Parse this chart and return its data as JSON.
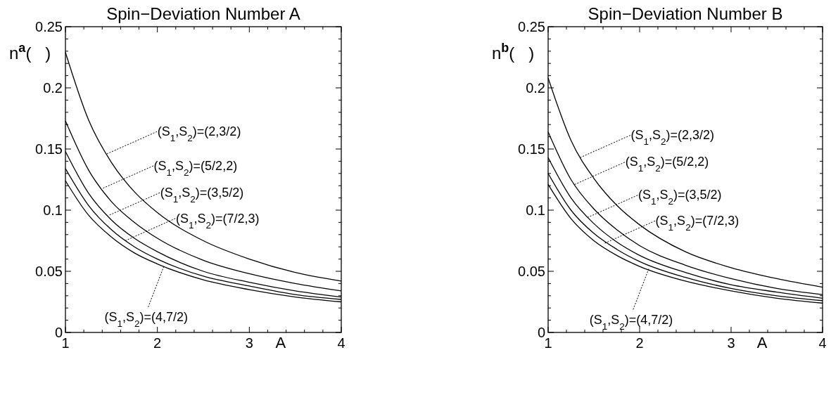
{
  "chart_data": [
    {
      "type": "line",
      "title": "Spin−Deviation Number A",
      "xlabel": "A",
      "ylabel": "n$^{a}$(   )",
      "x": [
        1,
        1.25,
        1.5,
        1.75,
        2,
        2.5,
        3,
        3.5,
        4
      ],
      "series": [
        {
          "color": "#000000",
          "values": [
            0.229,
            0.174,
            0.139,
            0.115,
            0.098,
            0.075,
            0.06,
            0.049,
            0.042
          ]
        },
        {
          "color": "#000000",
          "values": [
            0.173,
            0.133,
            0.107,
            0.09,
            0.077,
            0.059,
            0.048,
            0.04,
            0.034
          ]
        },
        {
          "color": "#000000",
          "values": [
            0.148,
            0.114,
            0.092,
            0.077,
            0.066,
            0.05,
            0.041,
            0.034,
            0.029
          ]
        },
        {
          "color": "#000000",
          "values": [
            0.134,
            0.104,
            0.084,
            0.07,
            0.06,
            0.046,
            0.038,
            0.031,
            0.027
          ]
        },
        {
          "color": "#000000",
          "values": [
            0.124,
            0.096,
            0.078,
            0.065,
            0.056,
            0.043,
            0.035,
            0.029,
            0.025
          ]
        }
      ],
      "annotations": [
        {
          "text": "(S$_{1}$,S$_{2}$)=(2,3/2)",
          "x": 1.45,
          "y": 0.146
        },
        {
          "text": "(S$_{1}$,S$_{2}$)=(5/2,2)",
          "x": 1.41,
          "y": 0.118
        },
        {
          "text": "(S$_{1}$,S$_{2}$)=(3,5/2)",
          "x": 1.48,
          "y": 0.096
        },
        {
          "text": "(S$_{1}$,S$_{2}$)=(7/2,3)",
          "x": 1.65,
          "y": 0.075
        },
        {
          "text": "(S$_{1}$,S$_{2}$)=(4,7/2)",
          "x": 2.07,
          "y": 0.054
        }
      ],
      "xlim": [
        1,
        4
      ],
      "ylim": [
        0,
        0.25
      ],
      "xticks": [
        1,
        {
          "value": 1.2,
          "label": null
        },
        {
          "value": 1.4,
          "label": null
        },
        {
          "value": 1.6,
          "label": null
        },
        {
          "value": 1.8,
          "label": null
        },
        2,
        {
          "value": 2.2,
          "label": null
        },
        {
          "value": 2.4,
          "label": null
        },
        {
          "value": 2.6,
          "label": null
        },
        {
          "value": 2.8,
          "label": null
        },
        3,
        {
          "value": 3.2,
          "label": null
        },
        {
          "value": 3.4,
          "label": null
        },
        {
          "value": 3.6,
          "label": null
        },
        {
          "value": 3.8,
          "label": null
        },
        4
      ],
      "yticks": [
        0,
        {
          "value": 0.01,
          "label": null
        },
        {
          "value": 0.02,
          "label": null
        },
        {
          "value": 0.03,
          "label": null
        },
        {
          "value": 0.04,
          "label": null
        },
        0.05,
        {
          "value": 0.06,
          "label": null
        },
        {
          "value": 0.07,
          "label": null
        },
        {
          "value": 0.08,
          "label": null
        },
        {
          "value": 0.09,
          "label": null
        },
        0.1,
        {
          "value": 0.11,
          "label": null
        },
        {
          "value": 0.12,
          "label": null
        },
        {
          "value": 0.13,
          "label": null
        },
        {
          "value": 0.14,
          "label": null
        },
        0.15,
        {
          "value": 0.16,
          "label": null
        },
        {
          "value": 0.17,
          "label": null
        },
        {
          "value": 0.18,
          "label": null
        },
        {
          "value": 0.19,
          "label": null
        },
        0.2,
        {
          "value": 0.21,
          "label": null
        },
        {
          "value": 0.22,
          "label": null
        },
        {
          "value": 0.23,
          "label": null
        },
        {
          "value": 0.24,
          "label": null
        },
        0.25
      ],
      "line_style": "solid",
      "marker": "none",
      "grid": false
    },
    {
      "type": "line",
      "title": "Spin−Deviation Number B",
      "xlabel": "A",
      "ylabel": "n$^{b}$(   )",
      "x": [
        1,
        1.25,
        1.5,
        1.75,
        2,
        2.5,
        3,
        3.5,
        4
      ],
      "series": [
        {
          "color": "#000000",
          "values": [
            0.208,
            0.157,
            0.126,
            0.104,
            0.088,
            0.066,
            0.053,
            0.044,
            0.037
          ]
        },
        {
          "color": "#000000",
          "values": [
            0.164,
            0.125,
            0.101,
            0.084,
            0.071,
            0.055,
            0.044,
            0.036,
            0.031
          ]
        },
        {
          "color": "#000000",
          "values": [
            0.143,
            0.11,
            0.089,
            0.074,
            0.063,
            0.049,
            0.039,
            0.033,
            0.028
          ]
        },
        {
          "color": "#000000",
          "values": [
            0.13,
            0.1,
            0.081,
            0.068,
            0.058,
            0.045,
            0.036,
            0.03,
            0.026
          ]
        },
        {
          "color": "#000000",
          "values": [
            0.121,
            0.093,
            0.075,
            0.063,
            0.054,
            0.042,
            0.034,
            0.028,
            0.024
          ]
        }
      ],
      "annotations": [
        {
          "text": "(S$_{1}$,S$_{2}$)=(2,3/2)",
          "x": 1.35,
          "y": 0.143
        },
        {
          "text": "(S$_{1}$,S$_{2}$)=(5/2,2)",
          "x": 1.29,
          "y": 0.121
        },
        {
          "text": "(S$_{1}$,S$_{2}$)=(3,5/2)",
          "x": 1.43,
          "y": 0.094
        },
        {
          "text": "(S$_{1}$,S$_{2}$)=(7/2,3)",
          "x": 1.62,
          "y": 0.073
        },
        {
          "text": "(S$_{1}$,S$_{2}$)=(4,7/2)",
          "x": 2.1,
          "y": 0.052
        }
      ],
      "xlim": [
        1,
        4
      ],
      "ylim": [
        0,
        0.25
      ],
      "xticks": [
        1,
        {
          "value": 1.2,
          "label": null
        },
        {
          "value": 1.4,
          "label": null
        },
        {
          "value": 1.6,
          "label": null
        },
        {
          "value": 1.8,
          "label": null
        },
        2,
        {
          "value": 2.2,
          "label": null
        },
        {
          "value": 2.4,
          "label": null
        },
        {
          "value": 2.6,
          "label": null
        },
        {
          "value": 2.8,
          "label": null
        },
        3,
        {
          "value": 3.2,
          "label": null
        },
        {
          "value": 3.4,
          "label": null
        },
        {
          "value": 3.6,
          "label": null
        },
        {
          "value": 3.8,
          "label": null
        },
        4
      ],
      "yticks": [
        0,
        {
          "value": 0.01,
          "label": null
        },
        {
          "value": 0.02,
          "label": null
        },
        {
          "value": 0.03,
          "label": null
        },
        {
          "value": 0.04,
          "label": null
        },
        0.05,
        {
          "value": 0.06,
          "label": null
        },
        {
          "value": 0.07,
          "label": null
        },
        {
          "value": 0.08,
          "label": null
        },
        {
          "value": 0.09,
          "label": null
        },
        0.1,
        {
          "value": 0.11,
          "label": null
        },
        {
          "value": 0.12,
          "label": null
        },
        {
          "value": 0.13,
          "label": null
        },
        {
          "value": 0.14,
          "label": null
        },
        0.15,
        {
          "value": 0.16,
          "label": null
        },
        {
          "value": 0.17,
          "label": null
        },
        {
          "value": 0.18,
          "label": null
        },
        {
          "value": 0.19,
          "label": null
        },
        0.2,
        {
          "value": 0.21,
          "label": null
        },
        {
          "value": 0.22,
          "label": null
        },
        {
          "value": 0.23,
          "label": null
        },
        {
          "value": 0.24,
          "label": null
        },
        0.25
      ],
      "line_style": "solid",
      "marker": "none",
      "grid": false
    }
  ]
}
